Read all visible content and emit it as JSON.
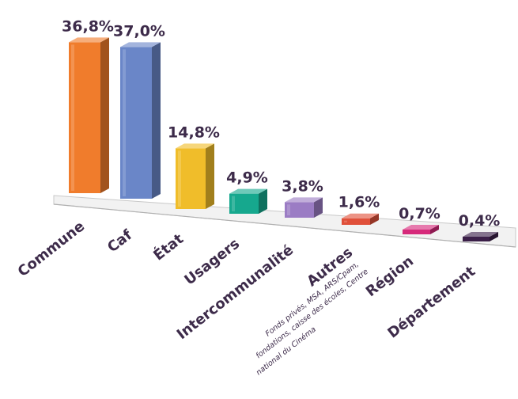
{
  "chart_data": {
    "type": "bar",
    "categories": [
      "Commune",
      "Caf",
      "État",
      "Usagers",
      "Intercommunalité",
      "Autres",
      "Région",
      "Département"
    ],
    "values": [
      36.8,
      37.0,
      14.8,
      4.9,
      3.8,
      1.6,
      0.7,
      0.4
    ],
    "value_labels": [
      "36,8%",
      "37,0%",
      "14,8%",
      "4,9%",
      "3,8%",
      "1,6%",
      "0,7%",
      "0,4%"
    ],
    "category_notes": {
      "Autres": [
        "Fonds privés, MSA, ARS/Cpam,",
        "fondations, caisse des écoles, Centre",
        "national du Cinéma"
      ]
    },
    "colors": [
      "#f07c2c",
      "#6a86c8",
      "#f0bd2a",
      "#16a88e",
      "#9b7cc4",
      "#e0503a",
      "#d6297a",
      "#3b1f48"
    ],
    "unit": "%",
    "style": "3d-bars",
    "grid": false,
    "legend": "none"
  }
}
